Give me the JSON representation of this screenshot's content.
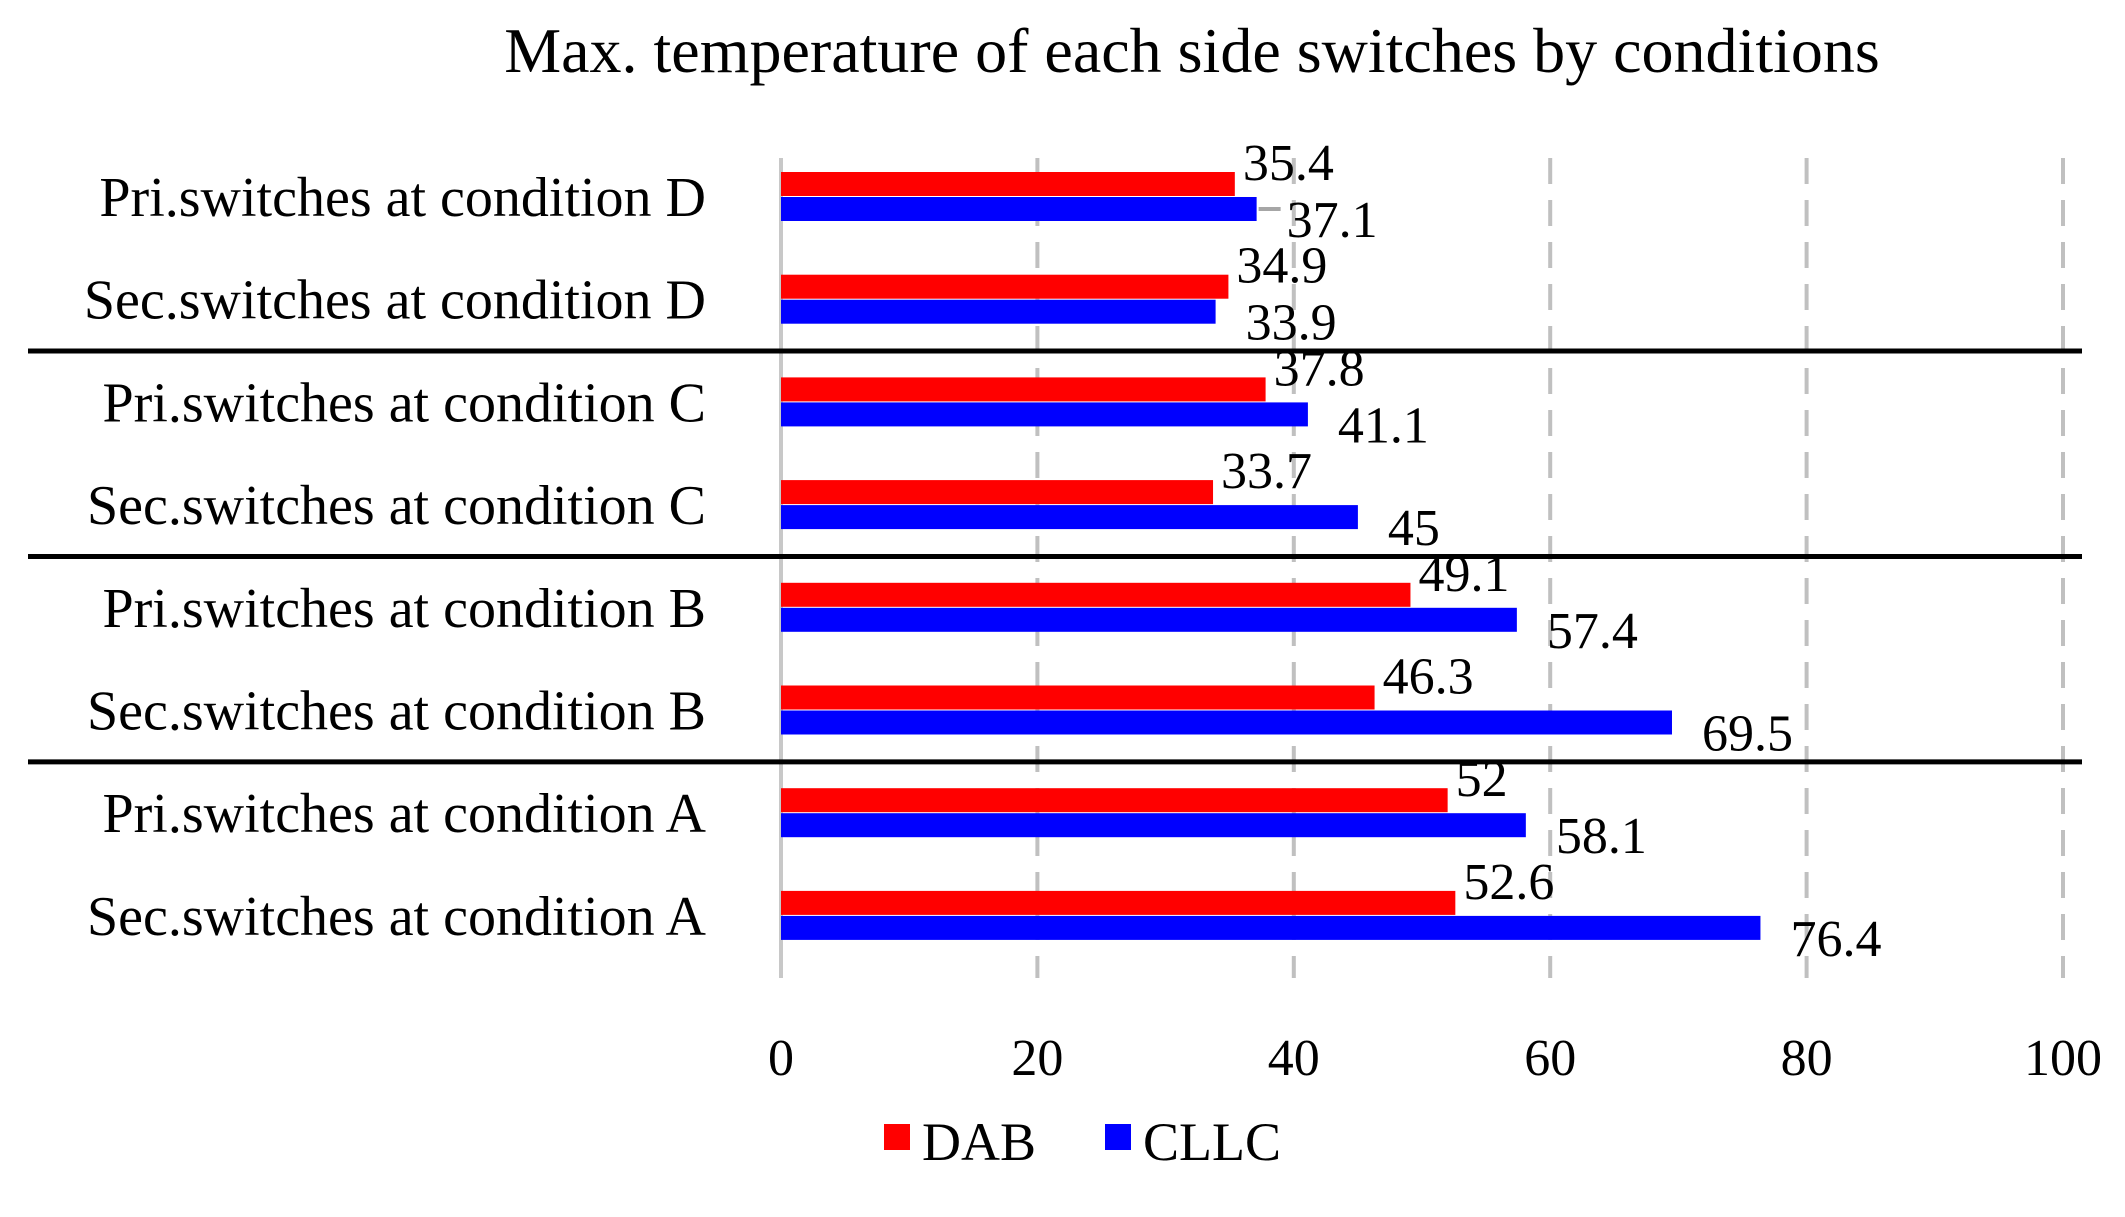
{
  "chart_data": {
    "type": "bar",
    "orientation": "horizontal",
    "title": "Max. temperature of each side switches by conditions",
    "xlabel": "",
    "ylabel": "",
    "xlim": [
      0,
      100
    ],
    "ticks": [
      "0",
      "20",
      "40",
      "60",
      "80",
      "100"
    ],
    "grid": true,
    "legend_position": "bottom",
    "categories": [
      "Pri.switches at condition D",
      "Sec.switches at condition D",
      "Pri.switches at condition C",
      "Sec.switches at condition C",
      "Pri.switches at condition B",
      "Sec.switches at condition B",
      "Pri.switches at condition A",
      "Sec.switches at condition A"
    ],
    "series": [
      {
        "name": "DAB",
        "color": "#ff0000",
        "values": [
          35.4,
          34.9,
          37.8,
          33.7,
          49.1,
          46.3,
          52,
          52.6
        ],
        "labels": [
          "35.4",
          "34.9",
          "37.8",
          "33.7",
          "49.1",
          "46.3",
          "52",
          "52.6"
        ]
      },
      {
        "name": "CLLC",
        "color": "#0000ff",
        "values": [
          37.1,
          33.9,
          41.1,
          45,
          57.4,
          69.5,
          58.1,
          76.4
        ],
        "labels": [
          "37.1",
          "33.9",
          "41.1",
          "45",
          "57.4",
          "69.5",
          "58.1",
          "76.4"
        ]
      }
    ]
  }
}
